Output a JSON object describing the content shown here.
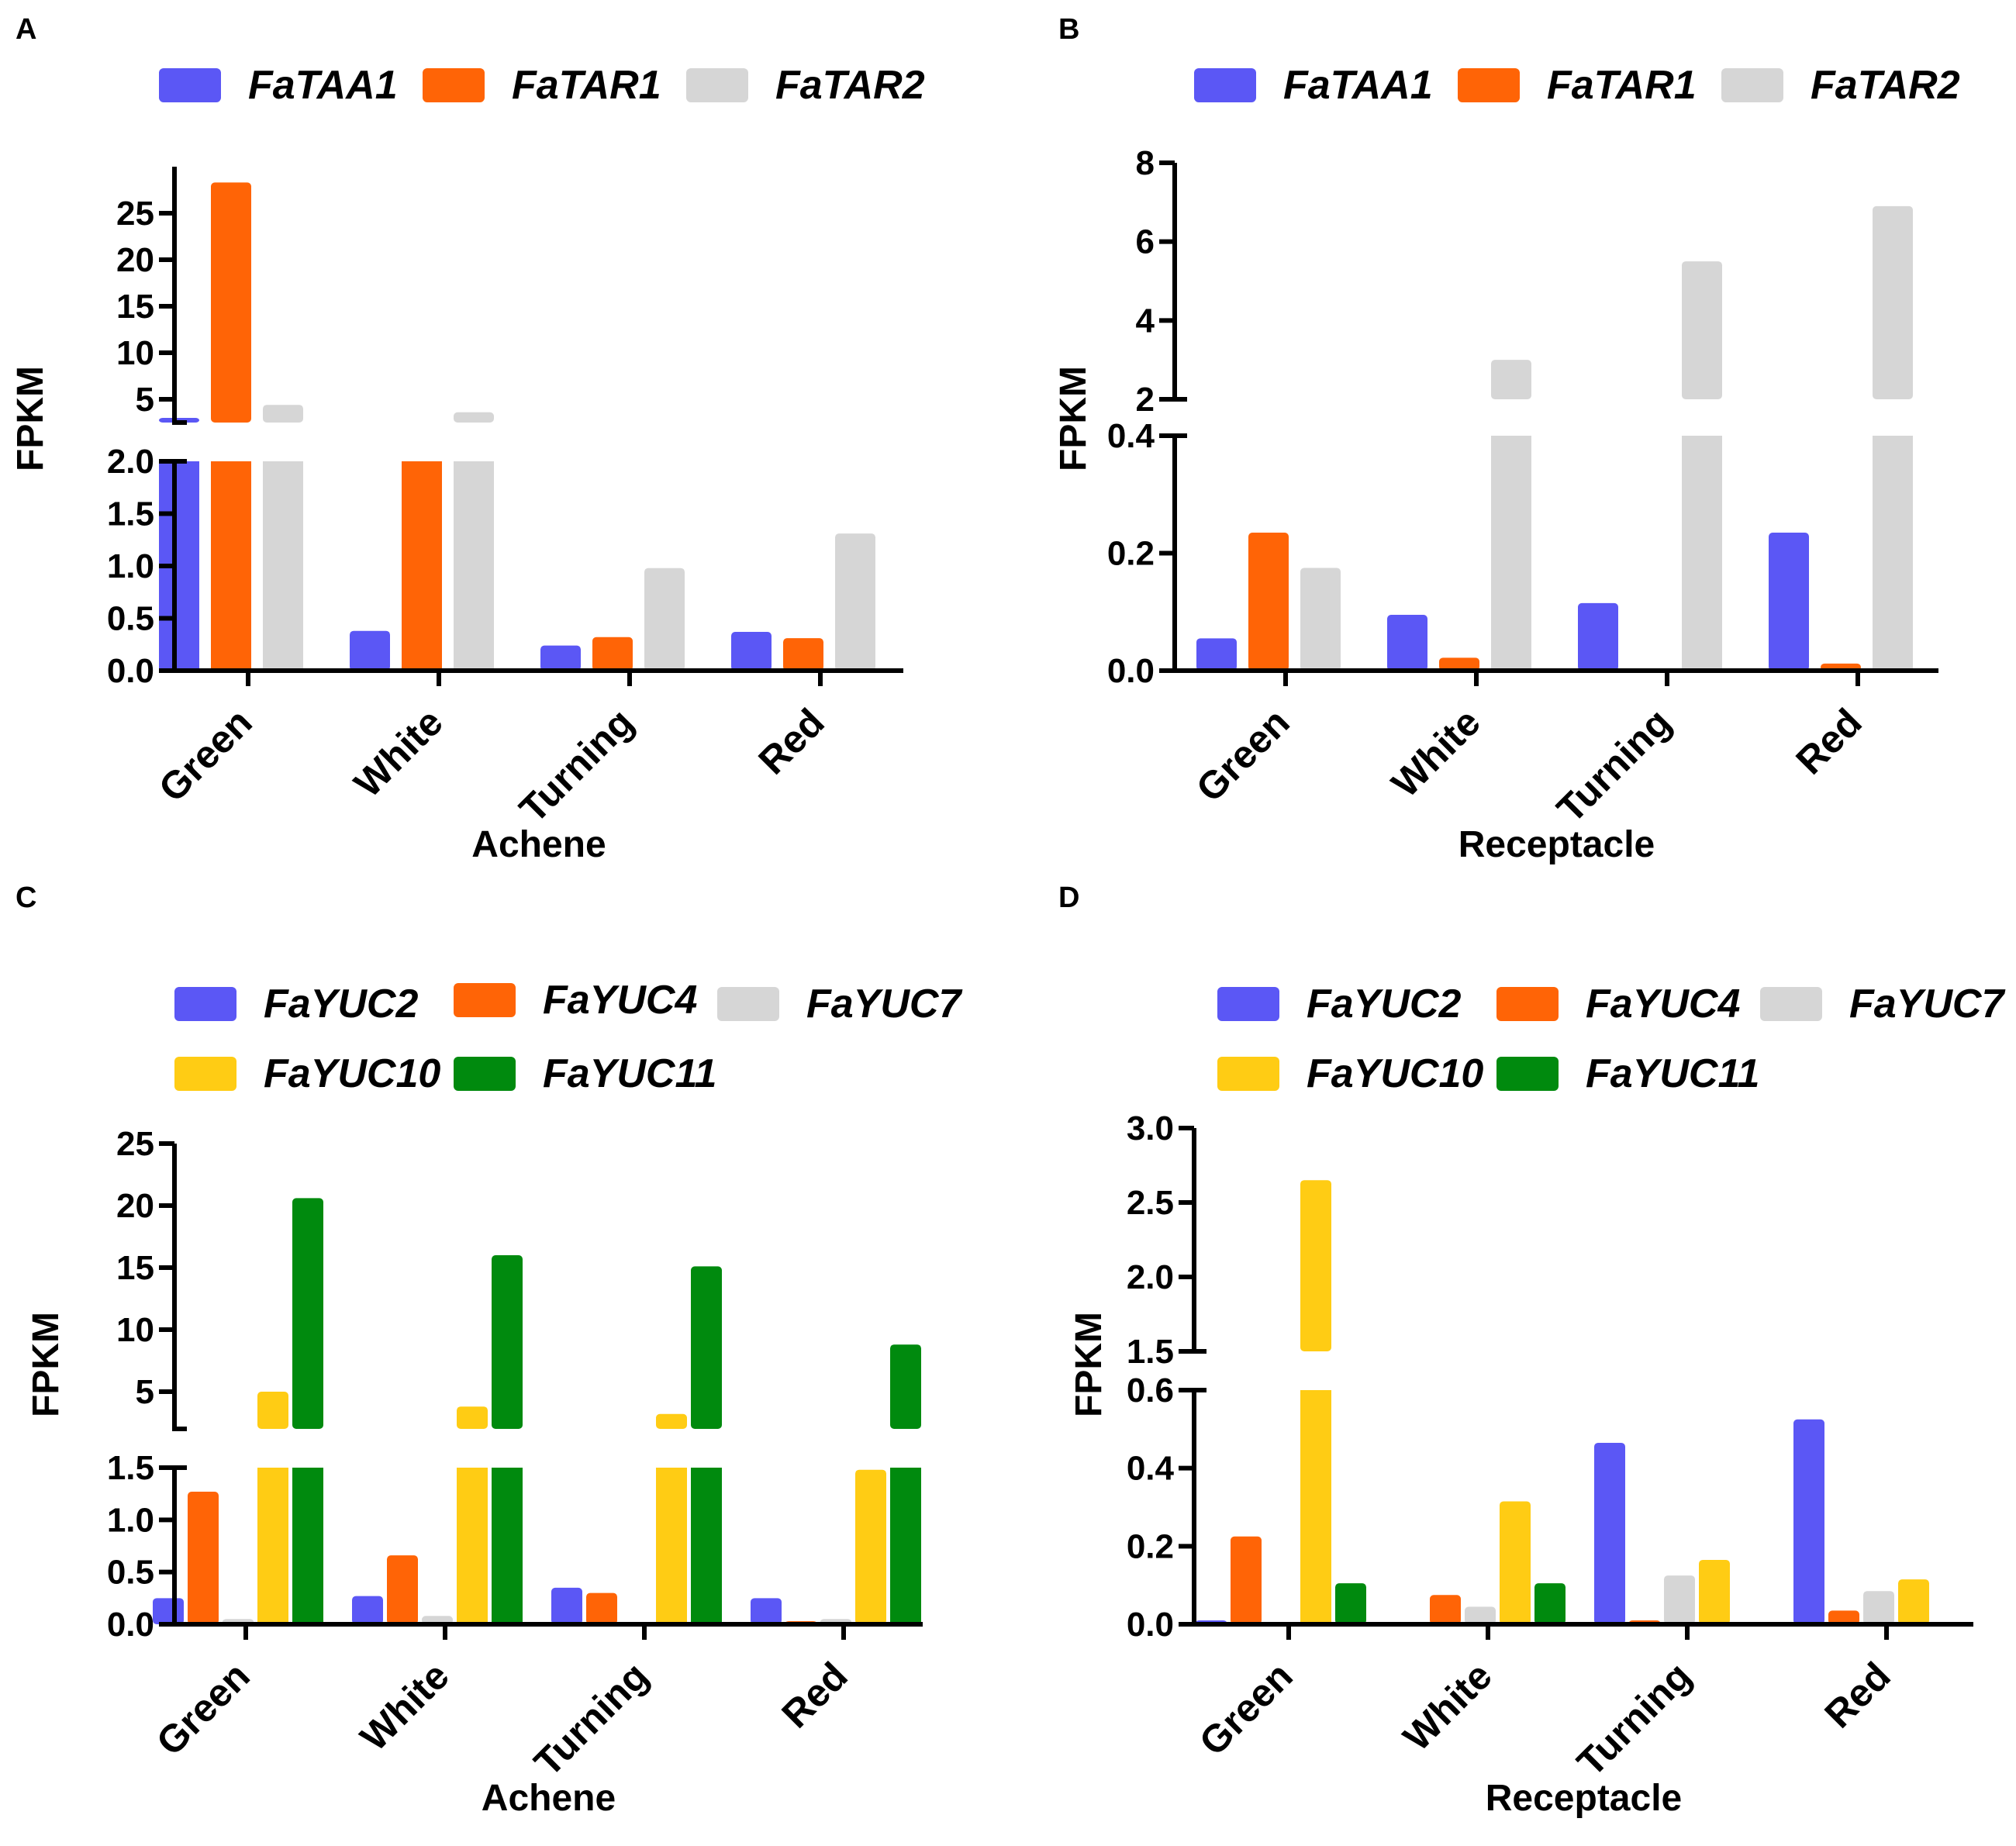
{
  "chart_data": [
    {
      "panel_label": "A",
      "type": "bar",
      "xlabel": "Achene",
      "ylabel": "FPKM",
      "categories": [
        "Green",
        "White",
        "Turning",
        "Red"
      ],
      "series": [
        {
          "name": "FaTAA1",
          "color": "#5b57f5",
          "values": [
            3.0,
            0.38,
            0.24,
            0.37
          ]
        },
        {
          "name": "FaTAR1",
          "color": "#ff6406",
          "values": [
            28.3,
            2.02,
            0.32,
            0.31
          ]
        },
        {
          "name": "FaTAR2",
          "color": "#d6d6d6",
          "values": [
            4.4,
            3.6,
            0.98,
            1.31
          ]
        }
      ],
      "axis_break": {
        "lower_range": [
          0,
          2.0
        ],
        "upper_range": [
          2.5,
          30
        ]
      },
      "lower_ticks": [
        "0.0",
        "0.5",
        "1.0",
        "1.5",
        "2.0"
      ],
      "upper_ticks": [
        "5",
        "10",
        "15",
        "20",
        "25"
      ]
    },
    {
      "panel_label": "B",
      "type": "bar",
      "xlabel": "Receptacle",
      "ylabel": "FPKM",
      "categories": [
        "Green",
        "White",
        "Turning",
        "Red"
      ],
      "series": [
        {
          "name": "FaTAA1",
          "color": "#5b57f5",
          "values": [
            0.055,
            0.095,
            0.115,
            0.235
          ]
        },
        {
          "name": "FaTAR1",
          "color": "#ff6406",
          "values": [
            0.235,
            0.022,
            0.0,
            0.012
          ]
        },
        {
          "name": "FaTAR2",
          "color": "#d6d6d6",
          "values": [
            0.175,
            3.0,
            5.5,
            6.9
          ]
        }
      ],
      "axis_break": {
        "lower_range": [
          0,
          0.4
        ],
        "upper_range": [
          2,
          8
        ]
      },
      "lower_ticks": [
        "0.0",
        "0.2",
        "0.4"
      ],
      "upper_ticks": [
        "2",
        "4",
        "6",
        "8"
      ]
    },
    {
      "panel_label": "C",
      "type": "bar",
      "xlabel": "Achene",
      "ylabel": "FPKM",
      "categories": [
        "Green",
        "White",
        "Turning",
        "Red"
      ],
      "series": [
        {
          "name": "FaYUC2",
          "color": "#5b57f5",
          "values": [
            0.25,
            0.27,
            0.35,
            0.25
          ]
        },
        {
          "name": "FaYUC4",
          "color": "#ff6406",
          "values": [
            1.27,
            0.66,
            0.3,
            0.03
          ]
        },
        {
          "name": "FaYUC7",
          "color": "#d6d6d6",
          "values": [
            0.05,
            0.08,
            0.0,
            0.05
          ]
        },
        {
          "name": "FaYUC10",
          "color": "#ffcc14",
          "values": [
            5.0,
            3.8,
            3.2,
            1.48
          ]
        },
        {
          "name": "FaYUC11",
          "color": "#008a0e",
          "values": [
            20.6,
            16.0,
            15.1,
            8.8
          ]
        }
      ],
      "axis_break": {
        "lower_range": [
          0,
          1.5
        ],
        "upper_range": [
          2,
          25
        ]
      },
      "lower_ticks": [
        "0.0",
        "0.5",
        "1.0",
        "1.5"
      ],
      "upper_ticks": [
        "5",
        "10",
        "15",
        "20",
        "25"
      ]
    },
    {
      "panel_label": "D",
      "type": "bar",
      "xlabel": "Receptacle",
      "ylabel": "FPKM",
      "categories": [
        "Green",
        "White",
        "Turning",
        "Red"
      ],
      "series": [
        {
          "name": "FaYUC2",
          "color": "#5b57f5",
          "values": [
            0.01,
            0.0,
            0.465,
            0.525
          ]
        },
        {
          "name": "FaYUC4",
          "color": "#ff6406",
          "values": [
            0.225,
            0.075,
            0.01,
            0.035
          ]
        },
        {
          "name": "FaYUC7",
          "color": "#d6d6d6",
          "values": [
            0.0,
            0.045,
            0.125,
            0.085
          ]
        },
        {
          "name": "FaYUC10",
          "color": "#ffcc14",
          "values": [
            2.65,
            0.315,
            0.165,
            0.115
          ]
        },
        {
          "name": "FaYUC11",
          "color": "#008a0e",
          "values": [
            0.105,
            0.105,
            0.0,
            0.0
          ]
        }
      ],
      "axis_break": {
        "lower_range": [
          0,
          0.6
        ],
        "upper_range": [
          1.5,
          3.0
        ]
      },
      "lower_ticks": [
        "0.0",
        "0.2",
        "0.4",
        "0.6"
      ],
      "upper_ticks": [
        "1.5",
        "2.0",
        "2.5",
        "3.0"
      ]
    }
  ]
}
